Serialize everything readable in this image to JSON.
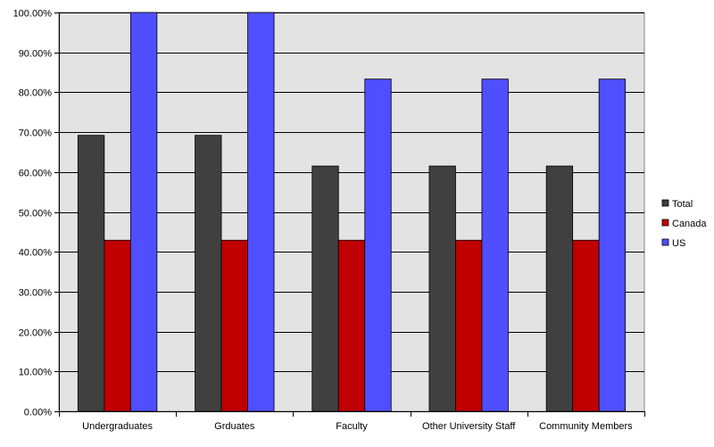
{
  "chart_data": {
    "type": "bar",
    "categories": [
      "Undergraduates",
      "Grduates",
      "Faculty",
      "Other University Staff",
      "Community Members"
    ],
    "series": [
      {
        "name": "Total",
        "color": "#404040",
        "values": [
          69.2,
          69.2,
          61.5,
          61.5,
          61.5
        ]
      },
      {
        "name": "Canada",
        "color": "#c00000",
        "values": [
          42.9,
          42.9,
          42.9,
          42.9,
          42.9
        ]
      },
      {
        "name": "US",
        "color": "#4f4fff",
        "values": [
          100.0,
          100.0,
          83.3,
          83.3,
          83.3
        ]
      }
    ],
    "yticks": [
      "0.00%",
      "10.00%",
      "20.00%",
      "30.00%",
      "40.00%",
      "50.00%",
      "60.00%",
      "70.00%",
      "80.00%",
      "90.00%",
      "100.00%"
    ],
    "ylim": [
      0,
      100
    ],
    "grid": true,
    "legend": "right",
    "plot_background": "#e3e3e3"
  }
}
